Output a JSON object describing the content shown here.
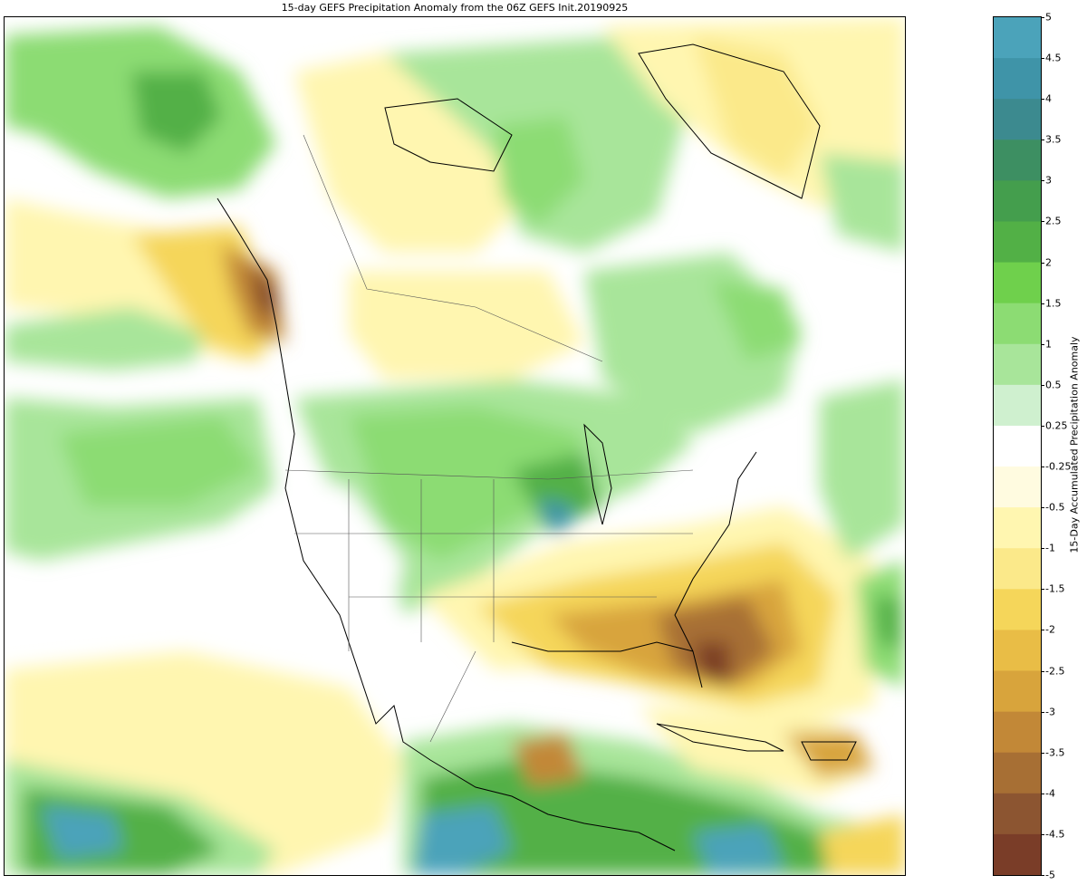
{
  "title": "15-day GEFS Precipitation Anomaly from the 06Z GEFS Init.20190925",
  "colorbar": {
    "label": "15-Day Accumulated Precipitation Anomaly",
    "ticks": [
      "5",
      "4.5",
      "4",
      "3.5",
      "3",
      "2.5",
      "2",
      "1.5",
      "1",
      "0.5",
      "0.25",
      "-0.25",
      "-0.5",
      "-1",
      "-1.5",
      "-2",
      "-2.5",
      "-3",
      "-3.5",
      "-4",
      "-4.5",
      "-5"
    ],
    "colors": [
      "#4ba3ba",
      "#3f94a8",
      "#3c8a8f",
      "#3d8f62",
      "#449e4d",
      "#52b046",
      "#6fd04c",
      "#8cdc73",
      "#a8e59a",
      "#cff0cf",
      "#ffffff",
      "#fffbe0",
      "#fff6b0",
      "#fbe98a",
      "#f5d65a",
      "#e9bd46",
      "#d8a43c",
      "#c28837",
      "#a76f34",
      "#8c5531",
      "#7a3d28"
    ]
  },
  "map": {
    "projection": "lambert-conformal",
    "region": "North America"
  }
}
